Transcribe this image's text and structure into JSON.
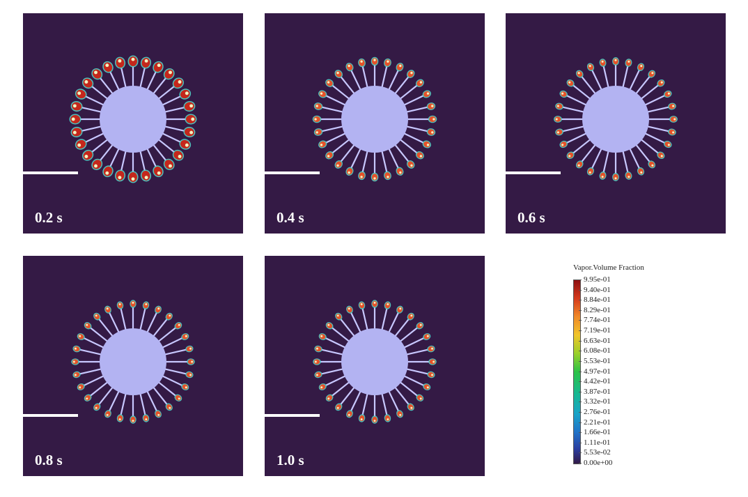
{
  "panels": [
    {
      "id": "p1",
      "time": "0.2 s",
      "intensity": 1.0
    },
    {
      "id": "p2",
      "time": "0.4 s",
      "intensity": 0.45
    },
    {
      "id": "p3",
      "time": "0.6 s",
      "intensity": 0.35
    },
    {
      "id": "p4",
      "time": "0.8 s",
      "intensity": 0.3
    },
    {
      "id": "p5",
      "time": "1.0 s",
      "intensity": 0.3
    }
  ],
  "legend": {
    "title": "Vapor.Volume Fraction",
    "ticks": [
      "9.95e-01",
      "9.40e-01",
      "8.84e-01",
      "8.29e-01",
      "7.74e-01",
      "7.19e-01",
      "6.63e-01",
      "6.08e-01",
      "5.53e-01",
      "4.97e-01",
      "4.42e-01",
      "3.87e-01",
      "3.32e-01",
      "2.76e-01",
      "2.21e-01",
      "1.66e-01",
      "1.11e-01",
      "5.53e-02",
      "0.00e+00"
    ]
  },
  "colors": {
    "background": "#341a45",
    "cylinder": "#b3b3f2",
    "fin": "#c8c8ff",
    "scale_bar": "#ffffff"
  }
}
